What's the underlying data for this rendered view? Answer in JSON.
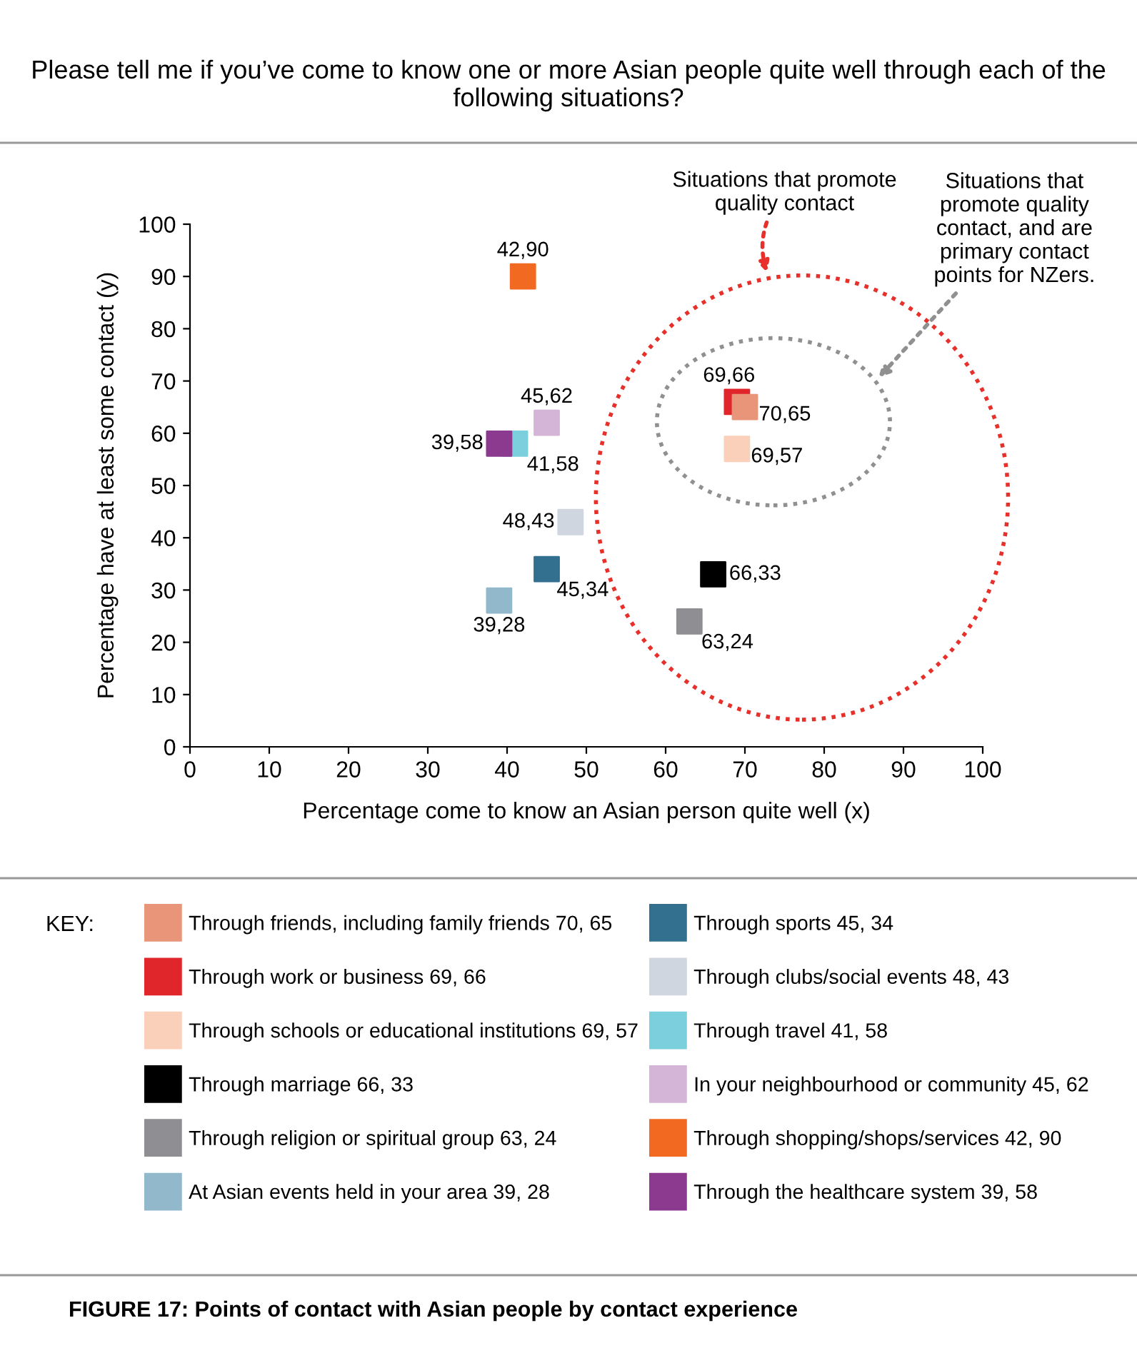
{
  "chart_data": {
    "type": "scatter",
    "title": "Please tell me if you’ve come to know one or more Asian people quite well through each of the following situations?",
    "xlabel": "Percentage come to know an Asian person quite well (x)",
    "ylabel": "Percentage have at least some contact (y)",
    "legend_title": "KEY:",
    "annotations": [
      "Situations that promote\nquality contact",
      "Situations that\npromote quality\ncontact, and are\nprimary contact\npoints for NZers.",
      "FIGURE 17: Points of contact with Asian people by contact experience",
      {
        "text": "70,65",
        "x": 70,
        "y": 65
      },
      {
        "text": "69,66",
        "x": 69,
        "y": 66
      },
      {
        "text": "69,57",
        "x": 69,
        "y": 57
      },
      {
        "text": "66,33",
        "x": 66,
        "y": 33
      },
      {
        "text": "63,24",
        "x": 63,
        "y": 24
      },
      {
        "text": "39,28",
        "x": 39,
        "y": 28
      },
      {
        "text": "45,34",
        "x": 45,
        "y": 34
      },
      {
        "text": "48,43",
        "x": 48,
        "y": 43
      },
      {
        "text": "41,58",
        "x": 41,
        "y": 58
      },
      {
        "text": "45,62",
        "x": 45,
        "y": 62
      },
      {
        "text": "42,90",
        "x": 42,
        "y": 90
      },
      {
        "text": "39,58",
        "x": 39,
        "y": 58
      }
    ],
    "series": [
      {
        "name": "Through friends, including family friends 70, 65",
        "color": "#e8957a",
        "x": [
          70
        ],
        "values": [
          65
        ]
      },
      {
        "name": "Through work or business 69, 66",
        "color": "#e0262b",
        "x": [
          69
        ],
        "values": [
          66
        ]
      },
      {
        "name": "Through schools or educational institutions 69, 57",
        "color": "#fbd0bb",
        "x": [
          69
        ],
        "values": [
          57
        ]
      },
      {
        "name": "Through marriage 66, 33",
        "color": "#000000",
        "x": [
          66
        ],
        "values": [
          33
        ]
      },
      {
        "name": "Through religion or spiritual group 63, 24",
        "color": "#8f8f93",
        "x": [
          63
        ],
        "values": [
          24
        ]
      },
      {
        "name": "At Asian events held in your area 39, 28",
        "color": "#92b8cc",
        "x": [
          39
        ],
        "values": [
          28
        ]
      },
      {
        "name": "Through sports 45, 34",
        "color": "#336f8e",
        "x": [
          45
        ],
        "values": [
          34
        ]
      },
      {
        "name": "Through clubs/social events 48, 43",
        "color": "#d0d6e0",
        "x": [
          48
        ],
        "values": [
          43
        ]
      },
      {
        "name": "Through travel 41, 58",
        "color": "#7ccfdc",
        "x": [
          41
        ],
        "values": [
          58
        ]
      },
      {
        "name": "In your neighbourhood or community 45, 62",
        "color": "#d4b5d8",
        "x": [
          45
        ],
        "values": [
          62
        ]
      },
      {
        "name": "Through shopping/shops/services 42, 90",
        "color": "#f26a21",
        "x": [
          42
        ],
        "values": [
          90
        ]
      },
      {
        "name": "Through the healthcare system 39, 58",
        "color": "#8b3a8f",
        "x": [
          39
        ],
        "values": [
          58
        ]
      }
    ],
    "xlim": [
      0,
      100
    ],
    "xticks": [
      0,
      10,
      20,
      30,
      40,
      50,
      60,
      70,
      80,
      90,
      100
    ],
    "ylim": [
      0,
      100
    ],
    "yticks": [
      0,
      10,
      20,
      30,
      40,
      50,
      60,
      70,
      80,
      90,
      100
    ],
    "grid": false,
    "legend": "bottom",
    "marker": "square"
  }
}
